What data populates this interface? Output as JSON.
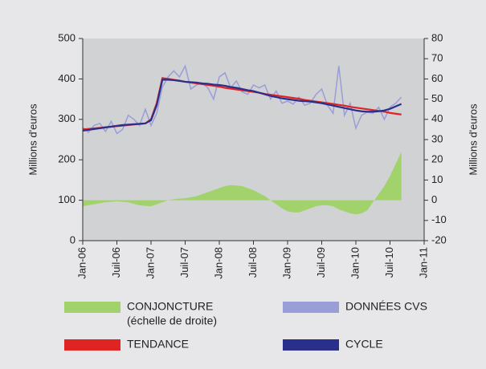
{
  "chart_data": {
    "type": "line",
    "y_label": "Millions d'euros",
    "y2_label": "Millions d'euros",
    "x": [
      "2006-01",
      "2006-02",
      "2006-03",
      "2006-04",
      "2006-05",
      "2006-06",
      "2006-07",
      "2006-08",
      "2006-09",
      "2006-10",
      "2006-11",
      "2006-12",
      "2007-01",
      "2007-02",
      "2007-03",
      "2007-04",
      "2007-05",
      "2007-06",
      "2007-07",
      "2007-08",
      "2007-09",
      "2007-10",
      "2007-11",
      "2007-12",
      "2008-01",
      "2008-02",
      "2008-03",
      "2008-04",
      "2008-05",
      "2008-06",
      "2008-07",
      "2008-08",
      "2008-09",
      "2008-10",
      "2008-11",
      "2008-12",
      "2009-01",
      "2009-02",
      "2009-03",
      "2009-04",
      "2009-05",
      "2009-06",
      "2009-07",
      "2009-08",
      "2009-09",
      "2009-10",
      "2009-11",
      "2009-12",
      "2010-01",
      "2010-02",
      "2010-03",
      "2010-04",
      "2010-05",
      "2010-06",
      "2010-07",
      "2010-08",
      "2010-09"
    ],
    "xlim": [
      "2006-01",
      "2011-01"
    ],
    "xticks": [
      {
        "value": "2006-01",
        "label": "Jan-06"
      },
      {
        "value": "2006-07",
        "label": "Juil-06"
      },
      {
        "value": "2007-01",
        "label": "Jan-07"
      },
      {
        "value": "2007-07",
        "label": "Juil-07"
      },
      {
        "value": "2008-01",
        "label": "Jan-08"
      },
      {
        "value": "2008-07",
        "label": "Juil-08"
      },
      {
        "value": "2009-01",
        "label": "Jan-09"
      },
      {
        "value": "2009-07",
        "label": "Juil-09"
      },
      {
        "value": "2010-01",
        "label": "Jan-10"
      },
      {
        "value": "2010-07",
        "label": "Juil-10"
      },
      {
        "value": "2011-01",
        "label": "Jan-11"
      }
    ],
    "ylim": [
      0,
      500
    ],
    "yticks": [
      0,
      100,
      200,
      300,
      400,
      500
    ],
    "y2lim": [
      -20,
      80
    ],
    "y2ticks": [
      -20,
      -10,
      0,
      10,
      20,
      30,
      40,
      50,
      60,
      70,
      80
    ],
    "series": [
      {
        "name": "CONJONCTURE",
        "subtitle": "(échelle de droite)",
        "type": "area",
        "axis": "y2",
        "color": "#a2d26c",
        "values": [
          -3,
          -2.5,
          -2,
          -1.5,
          -1,
          -0.8,
          -0.5,
          -0.8,
          -1,
          -1.8,
          -2.5,
          -2.8,
          -3,
          -2,
          -1,
          0,
          0.5,
          0.8,
          1,
          1.5,
          2,
          3,
          4,
          5,
          6,
          7,
          7.5,
          7.3,
          7,
          6,
          5,
          3.5,
          2,
          0,
          -2,
          -4,
          -5.5,
          -6,
          -6,
          -5,
          -4,
          -3,
          -2.5,
          -2.5,
          -3,
          -4.5,
          -5.5,
          -6.5,
          -7,
          -6.5,
          -5,
          -1,
          3,
          7,
          12,
          18,
          24
        ]
      },
      {
        "name": "DONNÉES CVS",
        "type": "line",
        "color": "#9a9ed6",
        "values": [
          280,
          268,
          285,
          290,
          270,
          295,
          265,
          275,
          310,
          300,
          285,
          325,
          285,
          315,
          380,
          405,
          420,
          405,
          432,
          375,
          385,
          390,
          378,
          350,
          405,
          415,
          378,
          395,
          368,
          362,
          385,
          378,
          385,
          350,
          370,
          340,
          345,
          338,
          355,
          335,
          340,
          362,
          375,
          335,
          315,
          432,
          310,
          340,
          278,
          310,
          318,
          315,
          330,
          300,
          330,
          340,
          355
        ]
      },
      {
        "name": "TENDANCE",
        "type": "line",
        "color": "#e02424",
        "values": [
          275,
          276.4,
          277.7,
          279.1,
          280.5,
          281.8,
          283.2,
          284.5,
          285.9,
          287.3,
          288.6,
          290,
          300,
          340,
          402,
          400,
          398,
          396,
          393,
          391,
          389,
          387,
          385,
          383,
          381,
          378,
          376,
          374,
          372,
          370,
          368,
          366,
          363,
          361,
          359,
          357,
          355,
          353,
          351,
          348,
          346,
          344,
          342,
          340,
          338,
          336,
          334,
          331,
          329,
          327,
          325,
          323,
          321,
          319,
          316,
          314,
          312
        ]
      },
      {
        "name": "CYCLE",
        "type": "line",
        "color": "#2b2f8c",
        "values": [
          272,
          274,
          276,
          278,
          280,
          282,
          284,
          286,
          287,
          288,
          289,
          290,
          298,
          335,
          398,
          398,
          397,
          395,
          393,
          392,
          391,
          389,
          388,
          386,
          385,
          383,
          380,
          378,
          375,
          372,
          370,
          366,
          362,
          358,
          355,
          352,
          350,
          348,
          346,
          345,
          344,
          342,
          340,
          337,
          334,
          331,
          328,
          325,
          322,
          320,
          319,
          319,
          320,
          322,
          326,
          332,
          338
        ]
      }
    ]
  }
}
